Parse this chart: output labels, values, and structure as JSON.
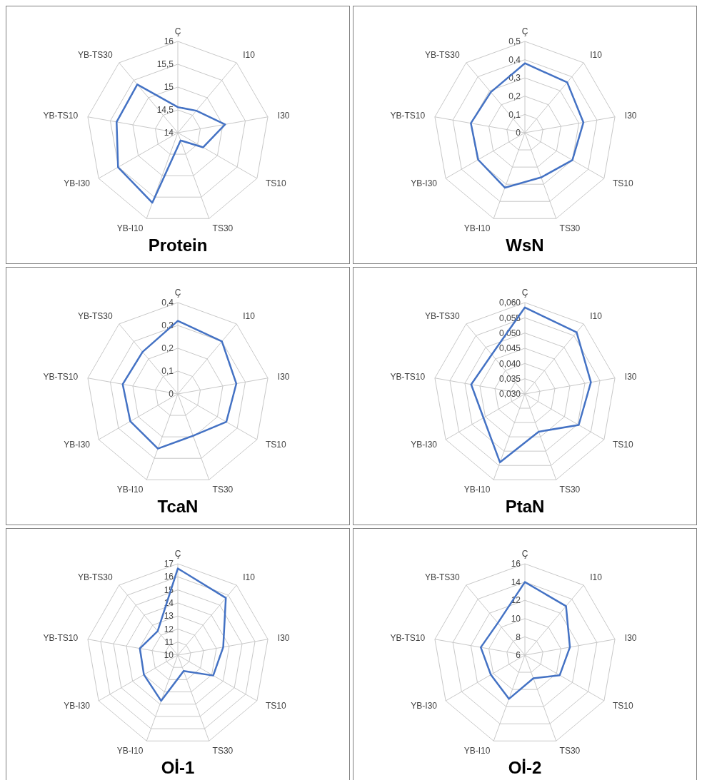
{
  "chart_data": [
    {
      "type": "radar",
      "title": "Protein",
      "categories": [
        "Ç",
        "I10",
        "I30",
        "TS10",
        "TS30",
        "YB-I10",
        "YB-I30",
        "YB-TS10",
        "YB-TS30"
      ],
      "ylim": [
        14,
        16
      ],
      "yticks": [
        14,
        {
          "value": 14.5,
          "label": "14,5"
        },
        15,
        {
          "value": 15.5,
          "label": "15,5"
        },
        16
      ],
      "grid": true,
      "series": [
        {
          "color": "#4472c4",
          "values": [
            14.56,
            14.63,
            15.05,
            14.64,
            14.18,
            15.63,
            15.51,
            15.36,
            15.38
          ]
        }
      ]
    },
    {
      "type": "radar",
      "title": "WsN",
      "categories": [
        "Ç",
        "I10",
        "I30",
        "TS10",
        "TS30",
        "YB-I10",
        "YB-I30",
        "YB-TS10",
        "YB-TS30"
      ],
      "ylim": [
        0,
        0.5
      ],
      "yticks": [
        0,
        {
          "value": 0.1,
          "label": "0,1"
        },
        {
          "value": 0.2,
          "label": "0,2"
        },
        {
          "value": 0.3,
          "label": "0,3"
        },
        {
          "value": 0.4,
          "label": "0,4"
        },
        {
          "value": 0.5,
          "label": "0,5"
        }
      ],
      "grid": true,
      "series": [
        {
          "color": "#4472c4",
          "values": [
            0.38,
            0.36,
            0.325,
            0.3,
            0.26,
            0.32,
            0.295,
            0.3,
            0.29
          ]
        }
      ]
    },
    {
      "type": "radar",
      "title": "TcaN",
      "categories": [
        "Ç",
        "I10",
        "I30",
        "TS10",
        "TS30",
        "YB-I10",
        "YB-I30",
        "YB-TS10",
        "YB-TS30"
      ],
      "ylim": [
        0,
        0.4
      ],
      "yticks": [
        0,
        {
          "value": 0.1,
          "label": "0,1"
        },
        {
          "value": 0.2,
          "label": "0,2"
        },
        {
          "value": 0.3,
          "label": "0,3"
        },
        {
          "value": 0.4,
          "label": "0,4"
        }
      ],
      "grid": true,
      "series": [
        {
          "color": "#4472c4",
          "values": [
            0.32,
            0.3,
            0.26,
            0.245,
            0.195,
            0.255,
            0.24,
            0.245,
            0.24
          ]
        }
      ]
    },
    {
      "type": "radar",
      "title": "PtaN",
      "categories": [
        "Ç",
        "I10",
        "I30",
        "TS10",
        "TS30",
        "YB-I10",
        "YB-I30",
        "YB-TS10",
        "YB-TS30"
      ],
      "ylim": [
        0.03,
        0.06
      ],
      "yticks": [
        {
          "value": 0.03,
          "label": "0,030"
        },
        {
          "value": 0.035,
          "label": "0,035"
        },
        {
          "value": 0.04,
          "label": "0,040"
        },
        {
          "value": 0.045,
          "label": "0,045"
        },
        {
          "value": 0.05,
          "label": "0,050"
        },
        {
          "value": 0.055,
          "label": "0,055"
        },
        {
          "value": 0.06,
          "label": "0,060"
        }
      ],
      "grid": true,
      "series": [
        {
          "color": "#4472c4",
          "values": [
            0.0584,
            0.0564,
            0.052,
            0.0504,
            0.0432,
            0.0539,
            0.0457,
            0.0479,
            0.0469
          ]
        }
      ]
    },
    {
      "type": "radar",
      "title": "Oİ-1",
      "categories": [
        "Ç",
        "I10",
        "I30",
        "TS10",
        "TS30",
        "YB-I10",
        "YB-I30",
        "YB-TS10",
        "YB-TS30"
      ],
      "ylim": [
        10,
        17
      ],
      "yticks": [
        10,
        11,
        12,
        13,
        14,
        15,
        16,
        17
      ],
      "grid": true,
      "series": [
        {
          "color": "#4472c4",
          "values": [
            16.64,
            15.72,
            13.53,
            13.13,
            11.3,
            13.73,
            13.0,
            12.95,
            12.4
          ]
        }
      ]
    },
    {
      "type": "radar",
      "title": "Oİ-2",
      "categories": [
        "Ç",
        "I10",
        "I30",
        "TS10",
        "TS30",
        "YB-I10",
        "YB-I30",
        "YB-TS10",
        "YB-TS30"
      ],
      "ylim": [
        6,
        16
      ],
      "yticks": [
        6,
        8,
        10,
        12,
        14,
        16
      ],
      "grid": true,
      "series": [
        {
          "color": "#4472c4",
          "values": [
            14,
            13,
            11,
            10.4,
            8.7,
            11.1,
            10.3,
            10.9,
            10.6
          ]
        }
      ]
    }
  ]
}
